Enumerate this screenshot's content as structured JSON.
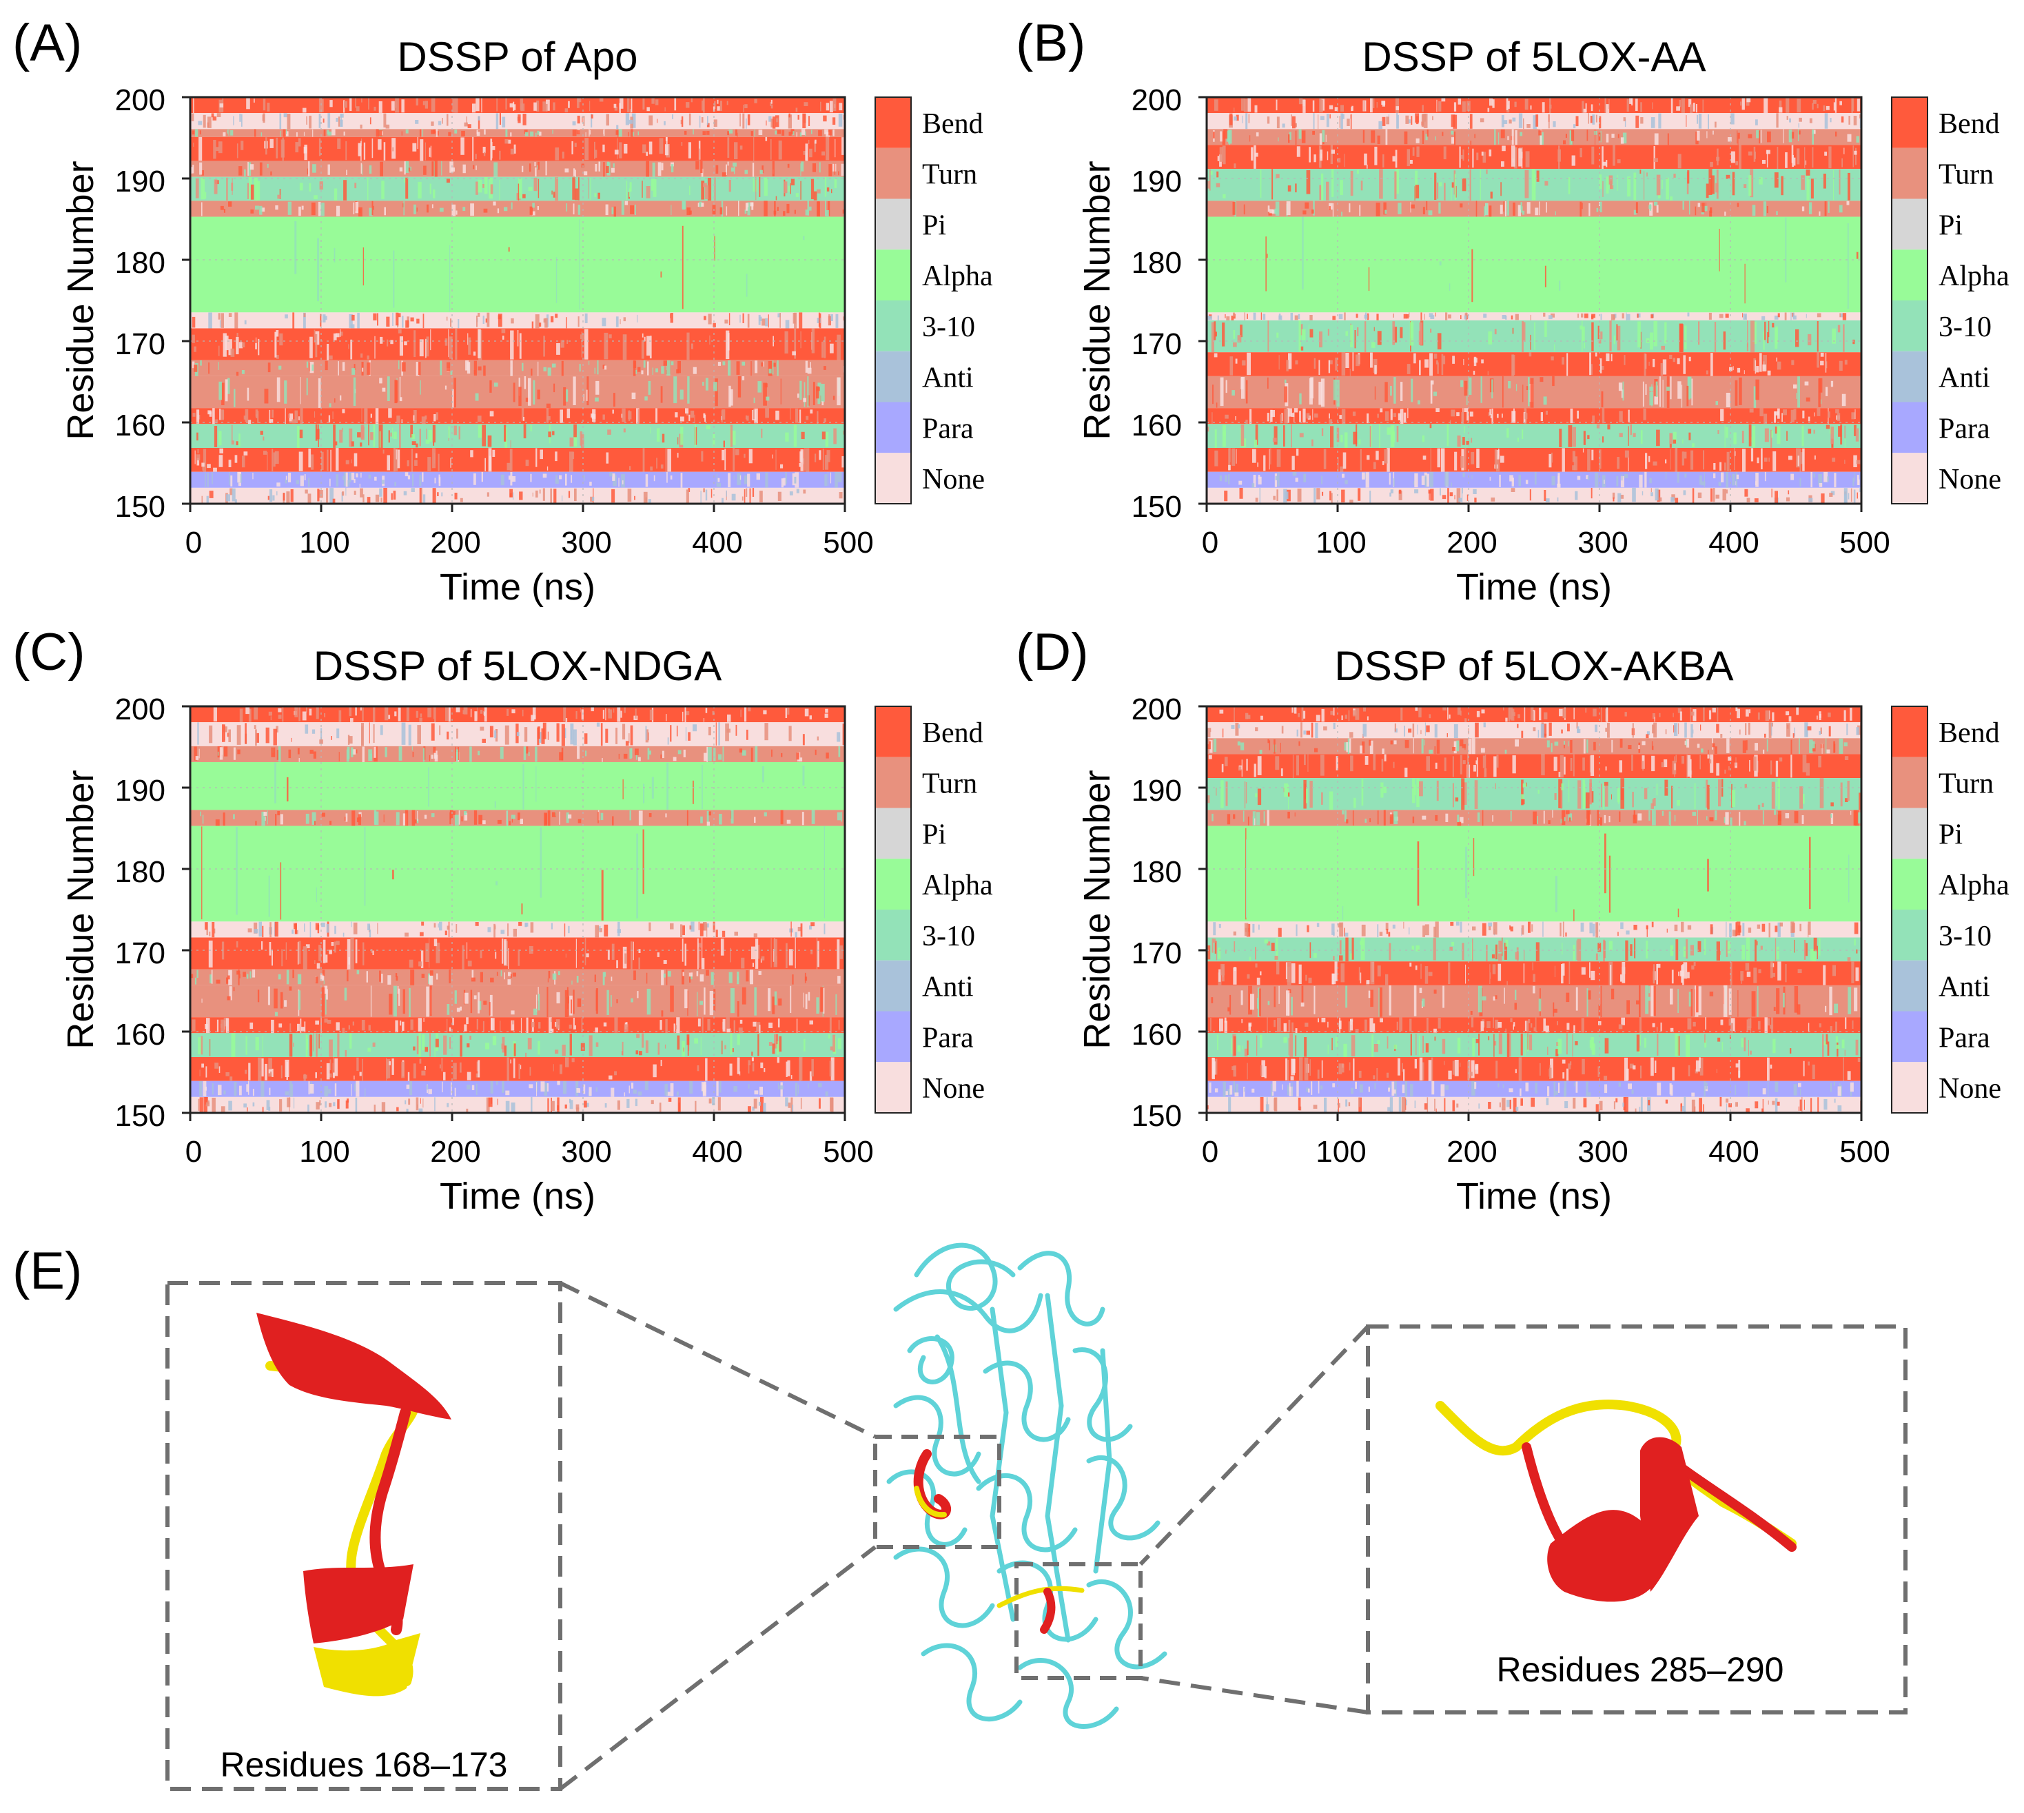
{
  "chart_data": [
    {
      "type": "heatmap",
      "panel_label": "(A)",
      "title": "DSSP of Apo",
      "xlabel": "Time (ns)",
      "ylabel": "Residue Number",
      "xlim": [
        0,
        500
      ],
      "ylim": [
        150,
        200
      ],
      "xticks": [
        "0",
        "100",
        "200",
        "300",
        "400",
        "500"
      ],
      "yticks": [
        "150",
        "160",
        "170",
        "180",
        "190",
        "200"
      ],
      "legend": [
        "Bend",
        "Turn",
        "Pi",
        "Alpha",
        "3-10",
        "Anti",
        "Para",
        "None"
      ],
      "residue_states": [
        {
          "residues": [
            199,
            200
          ],
          "state": "Bend"
        },
        {
          "residues": [
            197,
            198
          ],
          "state": "None"
        },
        {
          "residues": [
            196,
            196
          ],
          "state": "Turn"
        },
        {
          "residues": [
            193,
            195
          ],
          "state": "Bend"
        },
        {
          "residues": [
            191,
            192
          ],
          "state": "Turn"
        },
        {
          "residues": [
            188,
            190
          ],
          "state": "3-10"
        },
        {
          "residues": [
            186,
            187
          ],
          "state": "Turn"
        },
        {
          "residues": [
            174,
            185
          ],
          "state": "Alpha"
        },
        {
          "residues": [
            172,
            173
          ],
          "state": "None"
        },
        {
          "residues": [
            168,
            171
          ],
          "state": "Bend"
        },
        {
          "residues": [
            166,
            167
          ],
          "state": "Turn"
        },
        {
          "residues": [
            162,
            165
          ],
          "state": "Turn"
        },
        {
          "residues": [
            160,
            161
          ],
          "state": "Bend"
        },
        {
          "residues": [
            157,
            159
          ],
          "state": "3-10"
        },
        {
          "residues": [
            154,
            156
          ],
          "state": "Bend"
        },
        {
          "residues": [
            152,
            153
          ],
          "state": "Para"
        },
        {
          "residues": [
            150,
            151
          ],
          "state": "None"
        }
      ]
    },
    {
      "type": "heatmap",
      "panel_label": "(B)",
      "title": "DSSP of 5LOX-AA",
      "xlabel": "Time (ns)",
      "ylabel": "Residue Number",
      "xlim": [
        0,
        500
      ],
      "ylim": [
        150,
        200
      ],
      "xticks": [
        "0",
        "100",
        "200",
        "300",
        "400",
        "500"
      ],
      "yticks": [
        "150",
        "160",
        "170",
        "180",
        "190",
        "200"
      ],
      "legend": [
        "Bend",
        "Turn",
        "Pi",
        "Alpha",
        "3-10",
        "Anti",
        "Para",
        "None"
      ],
      "residue_states": [
        {
          "residues": [
            199,
            200
          ],
          "state": "Bend"
        },
        {
          "residues": [
            197,
            198
          ],
          "state": "None"
        },
        {
          "residues": [
            195,
            196
          ],
          "state": "Turn"
        },
        {
          "residues": [
            192,
            194
          ],
          "state": "Bend"
        },
        {
          "residues": [
            188,
            191
          ],
          "state": "3-10"
        },
        {
          "residues": [
            186,
            187
          ],
          "state": "Turn"
        },
        {
          "residues": [
            174,
            185
          ],
          "state": "Alpha"
        },
        {
          "residues": [
            173,
            173
          ],
          "state": "None"
        },
        {
          "residues": [
            169,
            172
          ],
          "state": "3-10"
        },
        {
          "residues": [
            166,
            168
          ],
          "state": "Bend"
        },
        {
          "residues": [
            162,
            165
          ],
          "state": "Turn"
        },
        {
          "residues": [
            160,
            161
          ],
          "state": "Bend"
        },
        {
          "residues": [
            157,
            159
          ],
          "state": "3-10"
        },
        {
          "residues": [
            154,
            156
          ],
          "state": "Bend"
        },
        {
          "residues": [
            152,
            153
          ],
          "state": "Para"
        },
        {
          "residues": [
            150,
            151
          ],
          "state": "None"
        }
      ]
    },
    {
      "type": "heatmap",
      "panel_label": "(C)",
      "title": "DSSP of 5LOX-NDGA",
      "xlabel": "Time (ns)",
      "ylabel": "Residue Number",
      "xlim": [
        0,
        500
      ],
      "ylim": [
        150,
        200
      ],
      "xticks": [
        "0",
        "100",
        "200",
        "300",
        "400",
        "500"
      ],
      "yticks": [
        "150",
        "160",
        "170",
        "180",
        "190",
        "200"
      ],
      "legend": [
        "Bend",
        "Turn",
        "Pi",
        "Alpha",
        "3-10",
        "Anti",
        "Para",
        "None"
      ],
      "residue_states": [
        {
          "residues": [
            199,
            200
          ],
          "state": "Bend"
        },
        {
          "residues": [
            196,
            198
          ],
          "state": "None"
        },
        {
          "residues": [
            194,
            195
          ],
          "state": "Turn"
        },
        {
          "residues": [
            188,
            193
          ],
          "state": "Alpha"
        },
        {
          "residues": [
            186,
            187
          ],
          "state": "Turn"
        },
        {
          "residues": [
            174,
            185
          ],
          "state": "Alpha"
        },
        {
          "residues": [
            172,
            173
          ],
          "state": "None"
        },
        {
          "residues": [
            168,
            171
          ],
          "state": "Bend"
        },
        {
          "residues": [
            166,
            167
          ],
          "state": "Turn"
        },
        {
          "residues": [
            162,
            165
          ],
          "state": "Turn"
        },
        {
          "residues": [
            160,
            161
          ],
          "state": "Bend"
        },
        {
          "residues": [
            157,
            159
          ],
          "state": "3-10"
        },
        {
          "residues": [
            154,
            156
          ],
          "state": "Bend"
        },
        {
          "residues": [
            152,
            153
          ],
          "state": "Para"
        },
        {
          "residues": [
            150,
            151
          ],
          "state": "None"
        }
      ]
    },
    {
      "type": "heatmap",
      "panel_label": "(D)",
      "title": "DSSP of 5LOX-AKBA",
      "xlabel": "Time (ns)",
      "ylabel": "Residue Number",
      "xlim": [
        0,
        500
      ],
      "ylim": [
        150,
        200
      ],
      "xticks": [
        "0",
        "100",
        "200",
        "300",
        "400",
        "500"
      ],
      "yticks": [
        "150",
        "160",
        "170",
        "180",
        "190",
        "200"
      ],
      "legend": [
        "Bend",
        "Turn",
        "Pi",
        "Alpha",
        "3-10",
        "Anti",
        "Para",
        "None"
      ],
      "residue_states": [
        {
          "residues": [
            199,
            200
          ],
          "state": "Bend"
        },
        {
          "residues": [
            197,
            198
          ],
          "state": "None"
        },
        {
          "residues": [
            195,
            196
          ],
          "state": "Turn"
        },
        {
          "residues": [
            192,
            194
          ],
          "state": "Bend"
        },
        {
          "residues": [
            188,
            191
          ],
          "state": "3-10"
        },
        {
          "residues": [
            186,
            187
          ],
          "state": "Turn"
        },
        {
          "residues": [
            174,
            185
          ],
          "state": "Alpha"
        },
        {
          "residues": [
            172,
            173
          ],
          "state": "None"
        },
        {
          "residues": [
            169,
            171
          ],
          "state": "3-10"
        },
        {
          "residues": [
            166,
            168
          ],
          "state": "Bend"
        },
        {
          "residues": [
            162,
            165
          ],
          "state": "Turn"
        },
        {
          "residues": [
            160,
            161
          ],
          "state": "Bend"
        },
        {
          "residues": [
            157,
            159
          ],
          "state": "3-10"
        },
        {
          "residues": [
            154,
            156
          ],
          "state": "Bend"
        },
        {
          "residues": [
            152,
            153
          ],
          "state": "Para"
        },
        {
          "residues": [
            150,
            151
          ],
          "state": "None"
        }
      ]
    }
  ],
  "state_colors": {
    "Bend": "#ff5a3c",
    "Turn": "#e8917e",
    "Pi": "#d6d6d6",
    "Alpha": "#98fb98",
    "3-10": "#93e2b8",
    "Anti": "#a9c2da",
    "Para": "#a8a8ff",
    "None": "#f8dede"
  },
  "panel_e": {
    "label": "(E)",
    "left_caption": "Residues 168–173",
    "right_caption": "Residues 285–290",
    "protein_color": "#5fd3d8",
    "red_color": "#e02020",
    "yellow_color": "#f0e000"
  }
}
